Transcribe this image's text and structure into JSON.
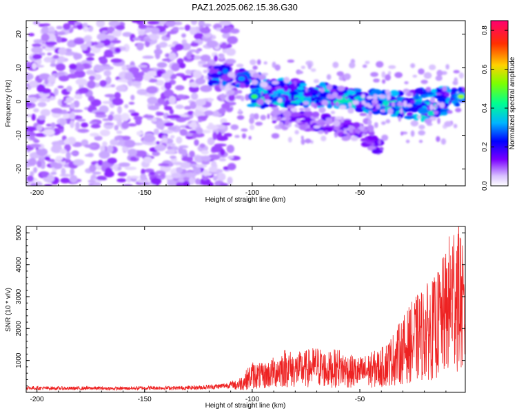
{
  "figure": {
    "title": "PAZ1.2025.062.15.36.G30"
  },
  "chart_data": [
    {
      "type": "heatmap",
      "xlabel": "Height of straight line (km)",
      "ylabel": "Frequency (Hz)",
      "xlim": [
        -205,
        -1
      ],
      "ylim": [
        -25,
        24
      ],
      "xticks": [
        -200,
        -150,
        -100,
        -50
      ],
      "yticks": [
        -20,
        -10,
        0,
        10,
        20
      ],
      "colorbar": {
        "label": "Normalized spectral amplitude",
        "range": [
          0.0,
          0.85
        ],
        "ticks": [
          0.0,
          0.2,
          0.4,
          0.6,
          0.8
        ],
        "colormap": "rainbow",
        "colors": [
          "#ffffff",
          "#c9a8ff",
          "#7a00ff",
          "#0000ff",
          "#00c8ff",
          "#00ff80",
          "#c8ff00",
          "#ffc000",
          "#ff3000",
          "#ff0080"
        ]
      },
      "features": [
        {
          "name": "noise",
          "x_range": [
            -205,
            -108
          ],
          "freq_range": [
            -25,
            24
          ],
          "amplitude": 0.08
        },
        {
          "name": "signal_upper",
          "points": [
            [
              -120,
              8
            ],
            [
              -105,
              7
            ],
            [
              -90,
              4
            ],
            [
              -70,
              3
            ],
            [
              -50,
              1
            ],
            [
              -30,
              0
            ],
            [
              -10,
              2
            ],
            [
              -2,
              1
            ]
          ],
          "amplitude": 0.3
        },
        {
          "name": "signal_main",
          "points": [
            [
              -100,
              1
            ],
            [
              -80,
              1.5
            ],
            [
              -60,
              1
            ],
            [
              -40,
              -1
            ],
            [
              -20,
              -3
            ],
            [
              -10,
              -2
            ]
          ],
          "amplitude": 0.35
        },
        {
          "name": "signal_lower",
          "points": [
            [
              -90,
              -4
            ],
            [
              -70,
              -6
            ],
            [
              -55,
              -8
            ],
            [
              -40,
              -13
            ]
          ],
          "amplitude": 0.15
        }
      ],
      "peaks": [
        {
          "x": -99,
          "y": 1.5,
          "amplitude": 0.45
        },
        {
          "x": -105,
          "y": 6.8,
          "amplitude": 0.3
        },
        {
          "x": -3,
          "y": 1.5,
          "amplitude": 0.5
        }
      ]
    },
    {
      "type": "line",
      "xlabel": "Height of straight line (km)",
      "ylabel": "SNR (10 * v/v)",
      "xlim": [
        -205,
        -1
      ],
      "ylim": [
        0,
        5200
      ],
      "xticks": [
        -200,
        -150,
        -100,
        -50
      ],
      "yticks": [
        1000,
        2000,
        3000,
        4000,
        5000
      ],
      "series": [
        {
          "color": "#ee2222",
          "x": [
            -205,
            -195,
            -185,
            -175,
            -165,
            -155,
            -145,
            -135,
            -125,
            -115,
            -108,
            -104,
            -100,
            -95,
            -90,
            -85,
            -80,
            -75,
            -70,
            -65,
            -60,
            -55,
            -50,
            -45,
            -40,
            -35,
            -30,
            -25,
            -20,
            -15,
            -10,
            -7,
            -5,
            -3,
            -1
          ],
          "y": [
            140,
            130,
            125,
            130,
            120,
            130,
            140,
            135,
            150,
            190,
            260,
            420,
            700,
            650,
            800,
            1000,
            900,
            950,
            1050,
            900,
            1000,
            850,
            800,
            900,
            1000,
            1300,
            1700,
            2100,
            2400,
            2600,
            3200,
            3900,
            4200,
            3700,
            2500
          ]
        }
      ]
    }
  ]
}
